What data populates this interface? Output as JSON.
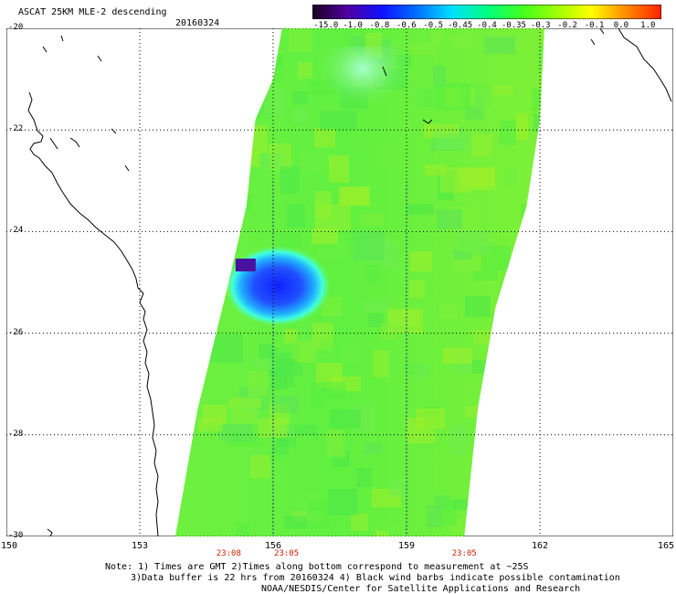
{
  "header": {
    "title": "ASCAT 25KM MLE-2 descending",
    "date": "20160324"
  },
  "colorbar": {
    "labels": [
      "-15.0",
      "-1.0",
      "-0.8",
      "-0.6",
      "-0.5",
      "-0.45",
      "-0.4",
      "-0.35",
      "-0.3",
      "-0.2",
      "-0.1",
      "0.0",
      "1.0"
    ],
    "colors": [
      "#2a0030",
      "#5a00a0",
      "#2020ff",
      "#0080ff",
      "#00c8ff",
      "#00ffc8",
      "#00ff60",
      "#40ff00",
      "#a0ff00",
      "#e0ff00",
      "#ffc000",
      "#ff6000",
      "#ff2000"
    ]
  },
  "map": {
    "lon_range": [
      150,
      165
    ],
    "lat_range": [
      -30,
      -20
    ],
    "lat_labels": [
      "-20",
      "-22",
      "-24",
      "-26",
      "-28",
      "-30"
    ],
    "lon_labels": [
      "150",
      "153",
      "156",
      "159",
      "162",
      "165"
    ],
    "time_labels": [
      {
        "text": "23:08",
        "lon": 155.0
      },
      {
        "text": "23:05",
        "lon": 156.3
      },
      {
        "text": "23:05",
        "lon": 160.3
      }
    ],
    "anomaly": {
      "lon": 156.1,
      "lat": -25.0,
      "label_values": [
        "-0.8",
        "-1.0"
      ]
    }
  },
  "notes": {
    "line1": "Note: 1) Times are GMT 2)Times along bottom correspond to measurement at ~25S",
    "line2": "3)Data buffer is 22 hrs from 20160324 4) Black wind barbs indicate possible contamination",
    "line3": "NOAA/NESDIS/Center for Satellite Applications and Research"
  }
}
